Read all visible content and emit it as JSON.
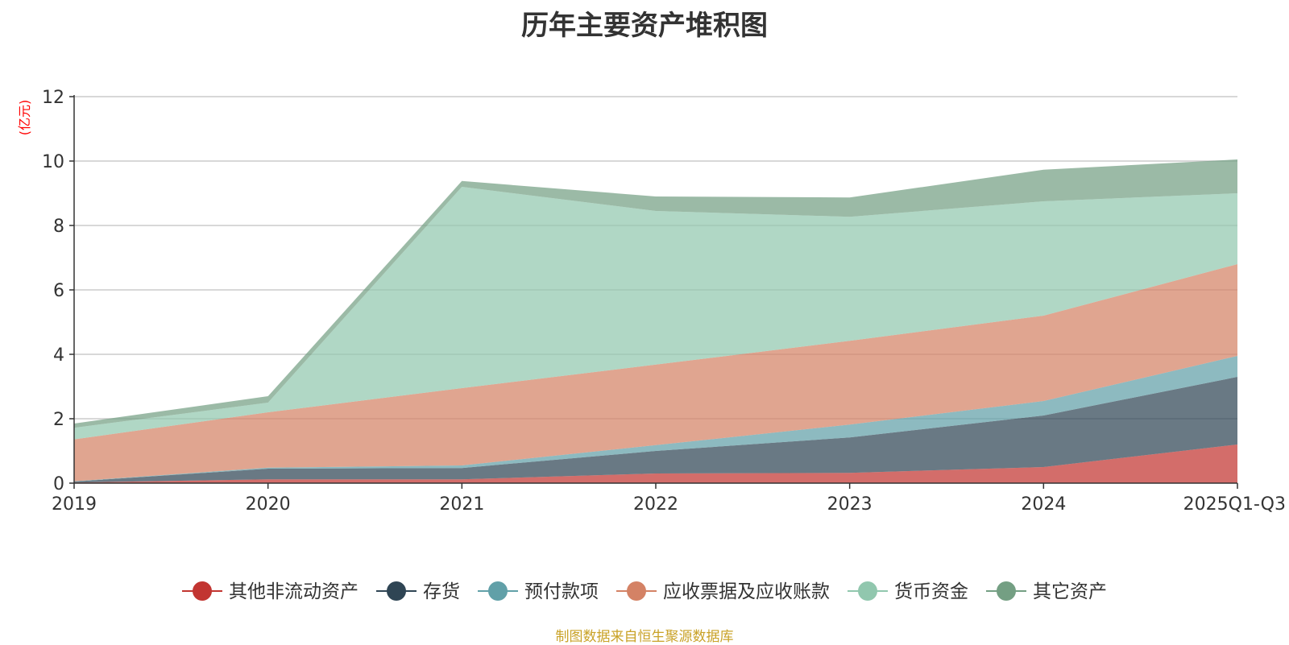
{
  "chart_data": {
    "type": "area",
    "stacked": true,
    "title": "历年主要资产堆积图",
    "ylabel": "(亿元)",
    "ylim": [
      0,
      12
    ],
    "yticks": [
      0,
      2,
      4,
      6,
      8,
      10,
      12
    ],
    "categories": [
      "2019",
      "2020",
      "2021",
      "2022",
      "2023",
      "2024",
      "2025Q1-Q3"
    ],
    "grid": true,
    "legend_position": "bottom",
    "series": [
      {
        "name": "其他非流动资产",
        "color": "#c23531",
        "values": [
          0.02,
          0.12,
          0.12,
          0.3,
          0.32,
          0.5,
          1.2
        ]
      },
      {
        "name": "存货",
        "color": "#2f4554",
        "values": [
          0.03,
          0.33,
          0.35,
          0.7,
          1.1,
          1.6,
          2.1
        ]
      },
      {
        "name": "预付款项",
        "color": "#61a0a8",
        "values": [
          0.01,
          0.03,
          0.08,
          0.18,
          0.4,
          0.45,
          0.65
        ]
      },
      {
        "name": "应收票据及应收账款",
        "color": "#d48265",
        "values": [
          1.3,
          1.72,
          2.4,
          2.5,
          2.6,
          2.65,
          2.85
        ]
      },
      {
        "name": "货币资金",
        "color": "#91c7ae",
        "values": [
          0.36,
          0.3,
          6.25,
          4.77,
          3.85,
          3.55,
          2.2
        ]
      },
      {
        "name": "其它资产",
        "color": "#749f83",
        "values": [
          0.13,
          0.2,
          0.18,
          0.45,
          0.6,
          0.98,
          1.05
        ]
      }
    ]
  },
  "footer": {
    "source": "制图数据来自恒生聚源数据库"
  }
}
